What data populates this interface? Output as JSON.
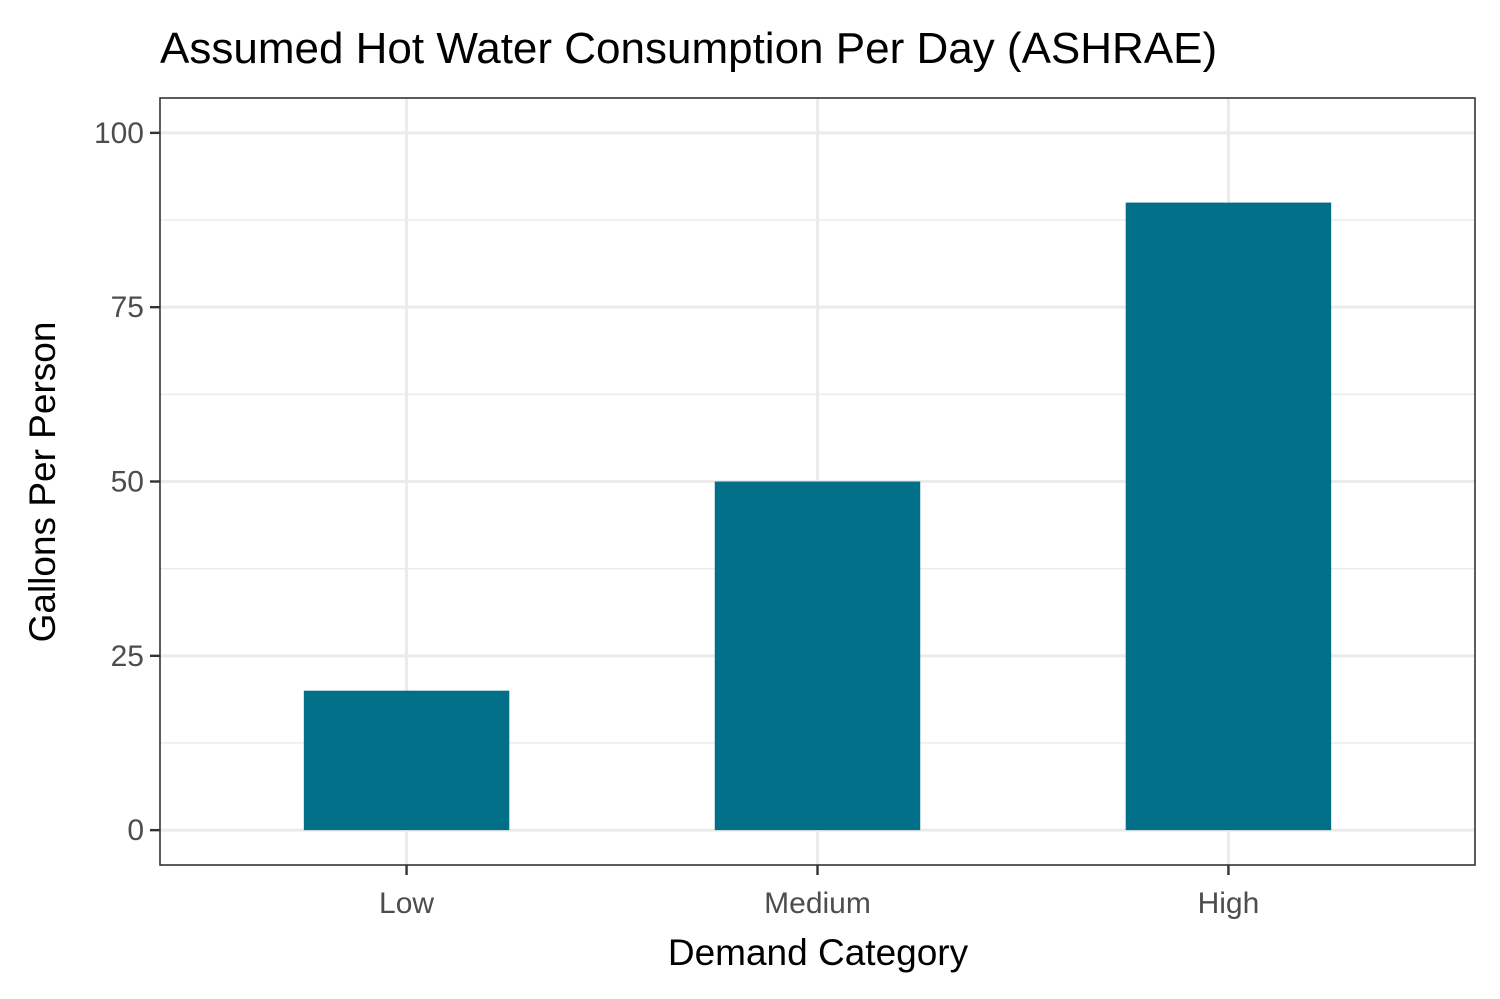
{
  "chart_data": {
    "type": "bar",
    "title": "Assumed Hot Water Consumption Per Day (ASHRAE)",
    "xlabel": "Demand Category",
    "ylabel": "Gallons Per Person",
    "categories": [
      "Low",
      "Medium",
      "High"
    ],
    "values": [
      20,
      50,
      90
    ],
    "ylim": [
      -5,
      105
    ],
    "yticks": [
      0,
      25,
      50,
      75,
      100
    ],
    "grid": true,
    "bar_color": "#006F87",
    "grid_color": "#EBEBEB",
    "panel_border_color": "#333333"
  }
}
